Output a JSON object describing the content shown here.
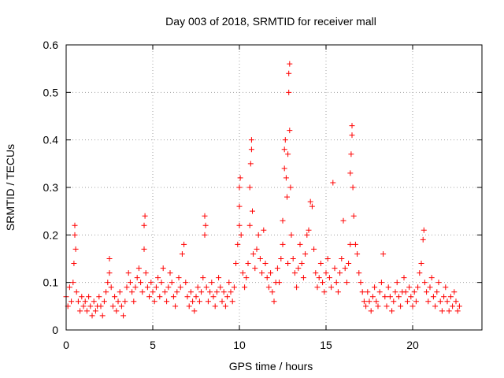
{
  "chart_data": {
    "type": "scatter",
    "title": "Day 003 of 2018, SRMTID for receiver mall",
    "xlabel": "GPS time / hours",
    "ylabel": "SRMTID / TECUs",
    "xlim": [
      0,
      24
    ],
    "ylim": [
      0,
      0.6
    ],
    "xticks": [
      "0",
      "5",
      "10",
      "15",
      "20"
    ],
    "yticks": [
      "0",
      "0.1",
      "0.2",
      "0.3",
      "0.4",
      "0.5",
      "0.6"
    ],
    "grid": true,
    "marker": "plus",
    "series_color": "#ff0000",
    "series": [
      {
        "name": "SRMTID",
        "points": [
          [
            0.0,
            0.07
          ],
          [
            0.1,
            0.05
          ],
          [
            0.2,
            0.09
          ],
          [
            0.3,
            0.06
          ],
          [
            0.4,
            0.1
          ],
          [
            0.45,
            0.14
          ],
          [
            0.5,
            0.2
          ],
          [
            0.5,
            0.22
          ],
          [
            0.55,
            0.17
          ],
          [
            0.6,
            0.08
          ],
          [
            0.7,
            0.06
          ],
          [
            0.8,
            0.04
          ],
          [
            0.9,
            0.07
          ],
          [
            1.0,
            0.05
          ],
          [
            1.1,
            0.06
          ],
          [
            1.2,
            0.04
          ],
          [
            1.3,
            0.07
          ],
          [
            1.4,
            0.05
          ],
          [
            1.5,
            0.03
          ],
          [
            1.6,
            0.06
          ],
          [
            1.7,
            0.04
          ],
          [
            1.8,
            0.05
          ],
          [
            1.9,
            0.07
          ],
          [
            2.0,
            0.05
          ],
          [
            2.1,
            0.03
          ],
          [
            2.2,
            0.06
          ],
          [
            2.3,
            0.08
          ],
          [
            2.4,
            0.1
          ],
          [
            2.5,
            0.12
          ],
          [
            2.5,
            0.15
          ],
          [
            2.6,
            0.09
          ],
          [
            2.7,
            0.05
          ],
          [
            2.8,
            0.07
          ],
          [
            2.9,
            0.04
          ],
          [
            3.0,
            0.06
          ],
          [
            3.1,
            0.08
          ],
          [
            3.2,
            0.05
          ],
          [
            3.3,
            0.03
          ],
          [
            3.4,
            0.06
          ],
          [
            3.5,
            0.09
          ],
          [
            3.6,
            0.12
          ],
          [
            3.7,
            0.1
          ],
          [
            3.8,
            0.08
          ],
          [
            3.9,
            0.06
          ],
          [
            4.0,
            0.09
          ],
          [
            4.1,
            0.11
          ],
          [
            4.2,
            0.13
          ],
          [
            4.3,
            0.1
          ],
          [
            4.4,
            0.08
          ],
          [
            4.5,
            0.17
          ],
          [
            4.5,
            0.22
          ],
          [
            4.55,
            0.24
          ],
          [
            4.6,
            0.12
          ],
          [
            4.7,
            0.09
          ],
          [
            4.8,
            0.07
          ],
          [
            4.9,
            0.1
          ],
          [
            5.0,
            0.08
          ],
          [
            5.1,
            0.06
          ],
          [
            5.2,
            0.09
          ],
          [
            5.3,
            0.11
          ],
          [
            5.4,
            0.07
          ],
          [
            5.5,
            0.1
          ],
          [
            5.6,
            0.13
          ],
          [
            5.7,
            0.08
          ],
          [
            5.8,
            0.06
          ],
          [
            5.9,
            0.09
          ],
          [
            6.0,
            0.12
          ],
          [
            6.1,
            0.1
          ],
          [
            6.2,
            0.07
          ],
          [
            6.3,
            0.05
          ],
          [
            6.4,
            0.08
          ],
          [
            6.5,
            0.11
          ],
          [
            6.6,
            0.09
          ],
          [
            6.7,
            0.16
          ],
          [
            6.8,
            0.18
          ],
          [
            6.9,
            0.1
          ],
          [
            7.0,
            0.07
          ],
          [
            7.1,
            0.05
          ],
          [
            7.2,
            0.08
          ],
          [
            7.3,
            0.06
          ],
          [
            7.4,
            0.04
          ],
          [
            7.5,
            0.07
          ],
          [
            7.6,
            0.09
          ],
          [
            7.7,
            0.06
          ],
          [
            7.8,
            0.08
          ],
          [
            7.9,
            0.11
          ],
          [
            8.0,
            0.2
          ],
          [
            8.0,
            0.24
          ],
          [
            8.05,
            0.22
          ],
          [
            8.1,
            0.09
          ],
          [
            8.2,
            0.06
          ],
          [
            8.3,
            0.08
          ],
          [
            8.4,
            0.1
          ],
          [
            8.5,
            0.07
          ],
          [
            8.6,
            0.05
          ],
          [
            8.7,
            0.08
          ],
          [
            8.8,
            0.11
          ],
          [
            8.9,
            0.09
          ],
          [
            9.0,
            0.06
          ],
          [
            9.1,
            0.08
          ],
          [
            9.2,
            0.05
          ],
          [
            9.3,
            0.07
          ],
          [
            9.4,
            0.1
          ],
          [
            9.5,
            0.08
          ],
          [
            9.6,
            0.06
          ],
          [
            9.7,
            0.09
          ],
          [
            9.8,
            0.14
          ],
          [
            9.9,
            0.18
          ],
          [
            10.0,
            0.22
          ],
          [
            10.0,
            0.26
          ],
          [
            10.0,
            0.3
          ],
          [
            10.05,
            0.32
          ],
          [
            10.1,
            0.2
          ],
          [
            10.2,
            0.12
          ],
          [
            10.3,
            0.09
          ],
          [
            10.4,
            0.11
          ],
          [
            10.5,
            0.14
          ],
          [
            10.6,
            0.22
          ],
          [
            10.6,
            0.3
          ],
          [
            10.65,
            0.35
          ],
          [
            10.7,
            0.38
          ],
          [
            10.7,
            0.4
          ],
          [
            10.75,
            0.25
          ],
          [
            10.8,
            0.16
          ],
          [
            10.9,
            0.13
          ],
          [
            11.0,
            0.17
          ],
          [
            11.1,
            0.2
          ],
          [
            11.2,
            0.15
          ],
          [
            11.3,
            0.12
          ],
          [
            11.4,
            0.21
          ],
          [
            11.5,
            0.14
          ],
          [
            11.6,
            0.11
          ],
          [
            11.7,
            0.09
          ],
          [
            11.8,
            0.12
          ],
          [
            11.9,
            0.08
          ],
          [
            12.0,
            0.06
          ],
          [
            12.1,
            0.1
          ],
          [
            12.2,
            0.13
          ],
          [
            12.3,
            0.1
          ],
          [
            12.4,
            0.15
          ],
          [
            12.5,
            0.18
          ],
          [
            12.5,
            0.23
          ],
          [
            12.6,
            0.34
          ],
          [
            12.6,
            0.38
          ],
          [
            12.65,
            0.4
          ],
          [
            12.7,
            0.32
          ],
          [
            12.75,
            0.28
          ],
          [
            12.8,
            0.14
          ],
          [
            12.8,
            0.37
          ],
          [
            12.85,
            0.5
          ],
          [
            12.85,
            0.54
          ],
          [
            12.9,
            0.56
          ],
          [
            12.9,
            0.42
          ],
          [
            12.95,
            0.3
          ],
          [
            13.0,
            0.2
          ],
          [
            13.1,
            0.15
          ],
          [
            13.2,
            0.12
          ],
          [
            13.3,
            0.09
          ],
          [
            13.4,
            0.13
          ],
          [
            13.5,
            0.18
          ],
          [
            13.6,
            0.14
          ],
          [
            13.7,
            0.11
          ],
          [
            13.8,
            0.16
          ],
          [
            13.9,
            0.2
          ],
          [
            14.0,
            0.21
          ],
          [
            14.1,
            0.27
          ],
          [
            14.2,
            0.26
          ],
          [
            14.3,
            0.17
          ],
          [
            14.4,
            0.12
          ],
          [
            14.5,
            0.09
          ],
          [
            14.6,
            0.11
          ],
          [
            14.7,
            0.14
          ],
          [
            14.8,
            0.1
          ],
          [
            14.9,
            0.08
          ],
          [
            15.0,
            0.12
          ],
          [
            15.1,
            0.15
          ],
          [
            15.2,
            0.11
          ],
          [
            15.3,
            0.09
          ],
          [
            15.4,
            0.31
          ],
          [
            15.5,
            0.13
          ],
          [
            15.6,
            0.1
          ],
          [
            15.7,
            0.08
          ],
          [
            15.8,
            0.12
          ],
          [
            15.9,
            0.15
          ],
          [
            16.0,
            0.23
          ],
          [
            16.1,
            0.13
          ],
          [
            16.2,
            0.1
          ],
          [
            16.3,
            0.14
          ],
          [
            16.4,
            0.18
          ],
          [
            16.4,
            0.33
          ],
          [
            16.45,
            0.37
          ],
          [
            16.5,
            0.41
          ],
          [
            16.5,
            0.43
          ],
          [
            16.55,
            0.3
          ],
          [
            16.6,
            0.24
          ],
          [
            16.7,
            0.18
          ],
          [
            16.8,
            0.16
          ],
          [
            16.9,
            0.12
          ],
          [
            17.0,
            0.1
          ],
          [
            17.1,
            0.08
          ],
          [
            17.2,
            0.06
          ],
          [
            17.3,
            0.05
          ],
          [
            17.4,
            0.08
          ],
          [
            17.5,
            0.06
          ],
          [
            17.6,
            0.04
          ],
          [
            17.7,
            0.07
          ],
          [
            17.8,
            0.09
          ],
          [
            17.9,
            0.06
          ],
          [
            18.0,
            0.05
          ],
          [
            18.1,
            0.08
          ],
          [
            18.2,
            0.1
          ],
          [
            18.3,
            0.16
          ],
          [
            18.4,
            0.07
          ],
          [
            18.5,
            0.05
          ],
          [
            18.6,
            0.09
          ],
          [
            18.7,
            0.07
          ],
          [
            18.8,
            0.04
          ],
          [
            18.9,
            0.06
          ],
          [
            19.0,
            0.08
          ],
          [
            19.1,
            0.1
          ],
          [
            19.2,
            0.07
          ],
          [
            19.3,
            0.05
          ],
          [
            19.4,
            0.08
          ],
          [
            19.5,
            0.11
          ],
          [
            19.6,
            0.08
          ],
          [
            19.7,
            0.06
          ],
          [
            19.8,
            0.09
          ],
          [
            19.9,
            0.07
          ],
          [
            20.0,
            0.05
          ],
          [
            20.1,
            0.08
          ],
          [
            20.2,
            0.06
          ],
          [
            20.3,
            0.09
          ],
          [
            20.4,
            0.12
          ],
          [
            20.5,
            0.14
          ],
          [
            20.6,
            0.19
          ],
          [
            20.65,
            0.21
          ],
          [
            20.7,
            0.1
          ],
          [
            20.8,
            0.08
          ],
          [
            20.9,
            0.06
          ],
          [
            21.0,
            0.09
          ],
          [
            21.1,
            0.11
          ],
          [
            21.2,
            0.07
          ],
          [
            21.3,
            0.05
          ],
          [
            21.4,
            0.08
          ],
          [
            21.5,
            0.1
          ],
          [
            21.6,
            0.06
          ],
          [
            21.7,
            0.04
          ],
          [
            21.8,
            0.07
          ],
          [
            21.9,
            0.09
          ],
          [
            22.0,
            0.06
          ],
          [
            22.1,
            0.04
          ],
          [
            22.2,
            0.07
          ],
          [
            22.3,
            0.05
          ],
          [
            22.4,
            0.08
          ],
          [
            22.5,
            0.06
          ],
          [
            22.6,
            0.04
          ],
          [
            22.7,
            0.05
          ]
        ]
      }
    ]
  }
}
